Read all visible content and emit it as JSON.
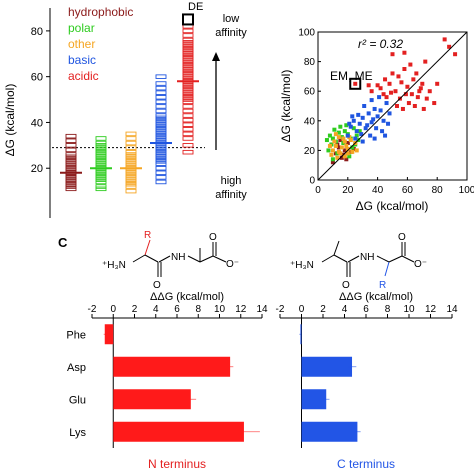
{
  "chart_data": [
    {
      "panel_letter": "",
      "type": "scatter",
      "ylabel": "ΔG (kcal/mol)",
      "ylim": [
        0,
        90
      ],
      "yticks": [
        "20",
        "40",
        "60",
        "80"
      ],
      "legend": [
        {
          "label": "hydrophobic",
          "color": "#8b1a1a"
        },
        {
          "label": "polar",
          "color": "#2ecc1f"
        },
        {
          "label": "other",
          "color": "#f5a623"
        },
        {
          "label": "basic",
          "color": "#1f55e0"
        },
        {
          "label": "acidic",
          "color": "#e32020"
        }
      ],
      "reference_line": 29,
      "highlight": {
        "label": "DE",
        "value": 85,
        "group": 4
      },
      "series": [
        {
          "name": "hydrophobic",
          "color": "#8b1a1a",
          "mean": 18,
          "values": [
            11,
            12,
            13,
            14,
            15,
            16,
            16,
            17,
            18,
            18,
            19,
            20,
            21,
            22,
            23,
            24,
            25,
            26,
            28,
            30,
            32,
            34
          ]
        },
        {
          "name": "polar",
          "color": "#2ecc1f",
          "mean": 20,
          "values": [
            11,
            12,
            14,
            15,
            16,
            17,
            18,
            19,
            20,
            21,
            22,
            23,
            24,
            25,
            26,
            27,
            28,
            29,
            30,
            31,
            33
          ]
        },
        {
          "name": "other",
          "color": "#f5a623",
          "mean": 20,
          "values": [
            10,
            12,
            13,
            14,
            15,
            16,
            17,
            18,
            19,
            20,
            21,
            22,
            23,
            24,
            25,
            26,
            27,
            29,
            31,
            33,
            35
          ]
        },
        {
          "name": "basic",
          "color": "#1f55e0",
          "mean": 31,
          "values": [
            14,
            16,
            18,
            20,
            22,
            23,
            24,
            25,
            26,
            27,
            28,
            29,
            30,
            31,
            32,
            33,
            34,
            35,
            36,
            37,
            38,
            39,
            40,
            41,
            42,
            43,
            45,
            47,
            49,
            51,
            53,
            55,
            57,
            60
          ]
        },
        {
          "name": "acidic",
          "color": "#e32020",
          "mean": 58,
          "values": [
            27,
            30,
            33,
            35,
            37,
            39,
            41,
            43,
            45,
            47,
            49,
            50,
            51,
            52,
            53,
            54,
            55,
            56,
            57,
            58,
            59,
            60,
            61,
            62,
            63,
            64,
            65,
            66,
            67,
            68,
            69,
            70,
            71,
            72,
            73,
            74,
            75,
            76,
            78,
            80,
            82
          ]
        }
      ],
      "arrow_top_label": [
        "low",
        "affinity"
      ],
      "arrow_bottom_label": [
        "high",
        "affinity"
      ]
    },
    {
      "panel_letter": "",
      "type": "scatter",
      "xlabel": "ΔG (kcal/mol)",
      "ylabel": "ΔG (kcal/mol)",
      "xlim": [
        0,
        100
      ],
      "ylim": [
        0,
        100
      ],
      "xticks": [
        "0",
        "20",
        "40",
        "60",
        "80",
        "100"
      ],
      "yticks": [
        "0",
        "20",
        "40",
        "60",
        "80",
        "100"
      ],
      "annotation": "r² = 0.32",
      "highlight": {
        "label": "EM, ME",
        "x": 25,
        "y": 65
      },
      "fit_line": [
        [
          0,
          0
        ],
        [
          100,
          100
        ]
      ],
      "series": [
        {
          "name": "hydrophobic",
          "color": "#8b1a1a",
          "points": [
            [
              12,
              18
            ],
            [
              14,
              22
            ],
            [
              16,
              15
            ],
            [
              18,
              20
            ],
            [
              20,
              25
            ],
            [
              22,
              19
            ],
            [
              10,
              12
            ],
            [
              15,
              27
            ],
            [
              19,
              14
            ],
            [
              24,
              21
            ],
            [
              13,
              24
            ],
            [
              17,
              17
            ]
          ]
        },
        {
          "name": "polar",
          "color": "#2ecc1f",
          "points": [
            [
              8,
              30
            ],
            [
              10,
              28
            ],
            [
              12,
              26
            ],
            [
              14,
              32
            ],
            [
              16,
              29
            ],
            [
              18,
              33
            ],
            [
              20,
              31
            ],
            [
              22,
              28
            ],
            [
              24,
              35
            ],
            [
              9,
              24
            ],
            [
              11,
              34
            ],
            [
              26,
              30
            ],
            [
              15,
              36
            ],
            [
              7,
              20
            ],
            [
              13,
              18
            ],
            [
              17,
              25
            ],
            [
              21,
              16
            ],
            [
              25,
              24
            ],
            [
              28,
              33
            ],
            [
              19,
              37
            ],
            [
              23,
              22
            ],
            [
              10,
              14
            ],
            [
              27,
              27
            ],
            [
              6,
              27
            ]
          ]
        },
        {
          "name": "other",
          "color": "#f5a623",
          "points": [
            [
              10,
              20
            ],
            [
              12,
              23
            ],
            [
              14,
              19
            ],
            [
              16,
              22
            ],
            [
              18,
              26
            ],
            [
              20,
              21
            ],
            [
              22,
              27
            ],
            [
              9,
              17
            ],
            [
              11,
              26
            ],
            [
              13,
              15
            ],
            [
              15,
              18
            ],
            [
              17,
              28
            ],
            [
              19,
              23
            ],
            [
              21,
              29
            ],
            [
              23,
              19
            ],
            [
              25,
              25
            ],
            [
              8,
              23
            ],
            [
              26,
              20
            ],
            [
              14,
              29
            ],
            [
              18,
              16
            ],
            [
              12,
              31
            ],
            [
              20,
              18
            ]
          ]
        },
        {
          "name": "basic",
          "color": "#1f55e0",
          "points": [
            [
              20,
              30
            ],
            [
              22,
              36
            ],
            [
              24,
              40
            ],
            [
              26,
              33
            ],
            [
              28,
              38
            ],
            [
              30,
              42
            ],
            [
              32,
              35
            ],
            [
              34,
              45
            ],
            [
              36,
              39
            ],
            [
              38,
              48
            ],
            [
              40,
              43
            ],
            [
              25,
              28
            ],
            [
              27,
              44
            ],
            [
              29,
              31
            ],
            [
              31,
              50
            ],
            [
              33,
              37
            ],
            [
              35,
              30
            ],
            [
              37,
              41
            ],
            [
              39,
              35
            ],
            [
              42,
              47
            ],
            [
              44,
              40
            ],
            [
              46,
              52
            ],
            [
              48,
              45
            ],
            [
              23,
              43
            ],
            [
              21,
              38
            ],
            [
              43,
              33
            ],
            [
              41,
              56
            ],
            [
              45,
              30
            ],
            [
              30,
              26
            ],
            [
              47,
              38
            ],
            [
              36,
              54
            ],
            [
              38,
              28
            ]
          ]
        },
        {
          "name": "acidic",
          "color": "#e32020",
          "points": [
            [
              42,
              62
            ],
            [
              45,
              68
            ],
            [
              48,
              65
            ],
            [
              50,
              72
            ],
            [
              52,
              60
            ],
            [
              54,
              70
            ],
            [
              56,
              66
            ],
            [
              58,
              75
            ],
            [
              60,
              63
            ],
            [
              62,
              78
            ],
            [
              64,
              68
            ],
            [
              66,
              72
            ],
            [
              68,
              60
            ],
            [
              70,
              65
            ],
            [
              72,
              80
            ],
            [
              55,
              55
            ],
            [
              57,
              48
            ],
            [
              59,
              58
            ],
            [
              61,
              52
            ],
            [
              63,
              58
            ],
            [
              65,
              50
            ],
            [
              67,
              56
            ],
            [
              69,
              62
            ],
            [
              71,
              48
            ],
            [
              73,
              55
            ],
            [
              75,
              60
            ],
            [
              78,
              52
            ],
            [
              80,
              65
            ],
            [
              85,
              95
            ],
            [
              88,
              90
            ],
            [
              92,
              85
            ],
            [
              50,
              85
            ],
            [
              46,
              56
            ],
            [
              44,
              58
            ],
            [
              40,
              64
            ],
            [
              53,
              50
            ],
            [
              49,
              59
            ],
            [
              36,
              60
            ],
            [
              58,
              86
            ],
            [
              34,
              64
            ]
          ]
        }
      ]
    },
    {
      "panel_letter": "C",
      "type": "bar",
      "orientation": "horizontal",
      "title": "ΔΔG (kcal/mol)",
      "xlabel": "N terminus",
      "xlim": [
        -2,
        14
      ],
      "xticks": [
        "-2",
        "0",
        "2",
        "4",
        "6",
        "8",
        "10",
        "12",
        "14"
      ],
      "categories": [
        "Phe",
        "Asp",
        "Glu",
        "Lys"
      ],
      "values": [
        -0.8,
        11.0,
        7.3,
        12.3
      ],
      "errors": [
        0.1,
        0.3,
        0.5,
        1.5
      ],
      "color": "#ff1a1a"
    },
    {
      "panel_letter": "",
      "type": "bar",
      "orientation": "horizontal",
      "title": "ΔΔG (kcal/mol)",
      "xlabel": "C terminus",
      "xlim": [
        -2,
        14
      ],
      "xticks": [
        "-2",
        "0",
        "2",
        "4",
        "6",
        "8",
        "10",
        "12",
        "14"
      ],
      "categories": [
        "Phe",
        "Asp",
        "Glu",
        "Lys"
      ],
      "values": [
        -0.1,
        4.7,
        2.3,
        5.2
      ],
      "errors": [
        0.1,
        0.4,
        0.3,
        0.3
      ],
      "color": "#2255e6"
    }
  ],
  "structures": {
    "left": {
      "r_label": "R",
      "nh3": "⁺H₃N",
      "nh": "NH",
      "o_top": "O",
      "o_bottom": "O",
      "o_minus": "O⁻"
    },
    "right": {
      "r_label": "R",
      "nh3": "⁺H₃N",
      "nh": "NH",
      "o_top": "O",
      "o_bottom": "O",
      "o_minus": "O⁻"
    }
  }
}
